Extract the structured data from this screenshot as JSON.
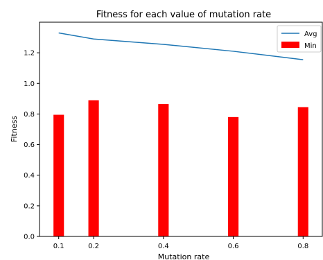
{
  "chart_data": {
    "type": "bar",
    "title": "Fitness for each value of mutation rate",
    "xlabel": "Mutation rate",
    "ylabel": "Fitness",
    "xlim": [
      0.045,
      0.855
    ],
    "ylim": [
      0.0,
      1.4
    ],
    "xticks": [
      0.1,
      0.2,
      0.4,
      0.6,
      0.8
    ],
    "xtick_labels": [
      "0.1",
      "0.2",
      "0.4",
      "0.6",
      "0.8"
    ],
    "yticks": [
      0.0,
      0.2,
      0.4,
      0.6,
      0.8,
      1.0,
      1.2
    ],
    "ytick_labels": [
      "0.0",
      "0.2",
      "0.4",
      "0.6",
      "0.8",
      "1.0",
      "1.2"
    ],
    "bar_width": 0.03,
    "grid": false,
    "legend_position": "upper right",
    "series": [
      {
        "name": "Avg",
        "kind": "line",
        "color": "#1f77b4",
        "x": [
          0.1,
          0.2,
          0.4,
          0.6,
          0.8
        ],
        "values": [
          1.33,
          1.29,
          1.255,
          1.21,
          1.155
        ]
      },
      {
        "name": "Min",
        "kind": "bar",
        "color": "#ff0000",
        "x": [
          0.1,
          0.2,
          0.4,
          0.6,
          0.8
        ],
        "values": [
          0.795,
          0.89,
          0.865,
          0.78,
          0.845
        ]
      }
    ]
  }
}
